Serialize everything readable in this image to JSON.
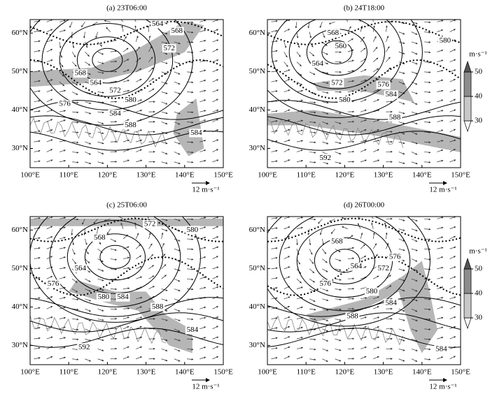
{
  "panels": [
    {
      "title": "(a) 23T06:00",
      "contour_labels": [
        564,
        568,
        572,
        576,
        564,
        568,
        572,
        580,
        584,
        588,
        584
      ]
    },
    {
      "title": "(b) 24T18:00",
      "contour_labels": [
        568,
        564,
        560,
        572,
        576,
        580,
        584,
        580,
        588,
        592
      ]
    },
    {
      "title": "(c) 25T06:00",
      "contour_labels": [
        572,
        568,
        564,
        576,
        580,
        584,
        588,
        580,
        592,
        584
      ]
    },
    {
      "title": "(d) 26T00:00",
      "contour_labels": [
        568,
        576,
        564,
        572,
        580,
        584,
        588,
        576,
        584
      ]
    }
  ],
  "xlim": [
    100,
    150
  ],
  "ylim": [
    25,
    63.5
  ],
  "xticks": [
    {
      "value": 100,
      "label": "100°E"
    },
    {
      "value": 110,
      "label": "110°E"
    },
    {
      "value": 120,
      "label": "120°E"
    },
    {
      "value": 130,
      "label": "130°E"
    },
    {
      "value": 140,
      "label": "140°E"
    },
    {
      "value": 150,
      "label": "150°E"
    }
  ],
  "yticks": [
    {
      "value": 30,
      "label": "30°N"
    },
    {
      "value": 40,
      "label": "40°N"
    },
    {
      "value": 50,
      "label": "50°N"
    },
    {
      "value": 60,
      "label": "60°N"
    }
  ],
  "vector_label": "12 m·s⁻¹",
  "colorbar": {
    "unit": "m·s⁻¹",
    "ticks": [
      30,
      40,
      50
    ]
  }
}
